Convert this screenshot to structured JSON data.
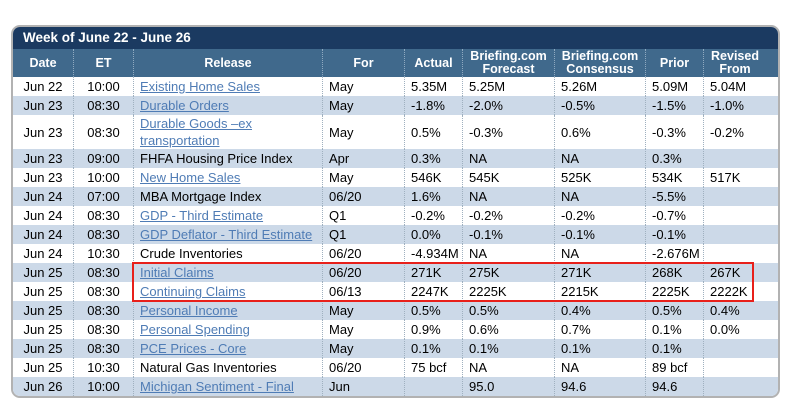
{
  "title": "Week of June 22 - June 26",
  "colors": {
    "titlebar_bg": "#1b3a61",
    "header_bg": "#40698c",
    "alt_row_bg": "#ccd9e8",
    "link": "#4f7cb5",
    "highlight_border": "#e8201a",
    "panel_border": "#b2b2b2"
  },
  "columns": [
    {
      "key": "date",
      "label": "Date"
    },
    {
      "key": "et",
      "label": "ET"
    },
    {
      "key": "release",
      "label": "Release"
    },
    {
      "key": "for",
      "label": "For"
    },
    {
      "key": "actual",
      "label": "Actual"
    },
    {
      "key": "forecast",
      "label": "Briefing.com Forecast"
    },
    {
      "key": "consensus",
      "label": "Briefing.com Consensus"
    },
    {
      "key": "prior",
      "label": "Prior"
    },
    {
      "key": "revised",
      "label": "Revised From"
    }
  ],
  "rows": [
    {
      "date": "Jun 22",
      "et": "10:00",
      "release": "Existing Home Sales",
      "link": true,
      "for": "May",
      "actual": "5.35M",
      "forecast": "5.25M",
      "consensus": "5.26M",
      "prior": "5.09M",
      "revised": "5.04M",
      "highlight": false
    },
    {
      "date": "Jun 23",
      "et": "08:30",
      "release": "Durable Orders",
      "link": true,
      "for": "May",
      "actual": "-1.8%",
      "forecast": "-2.0%",
      "consensus": "-0.5%",
      "prior": "-1.5%",
      "revised": "-1.0%",
      "highlight": false
    },
    {
      "date": "Jun 23",
      "et": "08:30",
      "release": "Durable Goods –ex transportation",
      "link": true,
      "for": "May",
      "actual": "0.5%",
      "forecast": "-0.3%",
      "consensus": "0.6%",
      "prior": "-0.3%",
      "revised": "-0.2%",
      "highlight": false
    },
    {
      "date": "Jun 23",
      "et": "09:00",
      "release": "FHFA Housing Price Index",
      "link": false,
      "for": "Apr",
      "actual": "0.3%",
      "forecast": "NA",
      "consensus": "NA",
      "prior": "0.3%",
      "revised": "",
      "highlight": false
    },
    {
      "date": "Jun 23",
      "et": "10:00",
      "release": "New Home Sales",
      "link": true,
      "for": "May",
      "actual": "546K",
      "forecast": "545K",
      "consensus": "525K",
      "prior": "534K",
      "revised": "517K",
      "highlight": false
    },
    {
      "date": "Jun 24",
      "et": "07:00",
      "release": "MBA Mortgage Index",
      "link": false,
      "for": "06/20",
      "actual": "1.6%",
      "forecast": "NA",
      "consensus": "NA",
      "prior": "-5.5%",
      "revised": "",
      "highlight": false
    },
    {
      "date": "Jun 24",
      "et": "08:30",
      "release": "GDP - Third Estimate",
      "link": true,
      "for": "Q1",
      "actual": "-0.2%",
      "forecast": "-0.2%",
      "consensus": "-0.2%",
      "prior": "-0.7%",
      "revised": "",
      "highlight": false
    },
    {
      "date": "Jun 24",
      "et": "08:30",
      "release": "GDP Deflator - Third Estimate",
      "link": true,
      "for": "Q1",
      "actual": "0.0%",
      "forecast": "-0.1%",
      "consensus": "-0.1%",
      "prior": "-0.1%",
      "revised": "",
      "highlight": false
    },
    {
      "date": "Jun 24",
      "et": "10:30",
      "release": "Crude Inventories",
      "link": false,
      "for": "06/20",
      "actual": "-4.934M",
      "forecast": "NA",
      "consensus": "NA",
      "prior": "-2.676M",
      "revised": "",
      "highlight": false
    },
    {
      "date": "Jun 25",
      "et": "08:30",
      "release": "Initial Claims",
      "link": true,
      "for": "06/20",
      "actual": "271K",
      "forecast": "275K",
      "consensus": "271K",
      "prior": "268K",
      "revised": "267K",
      "highlight": true
    },
    {
      "date": "Jun 25",
      "et": "08:30",
      "release": "Continuing Claims",
      "link": true,
      "for": "06/13",
      "actual": "2247K",
      "forecast": "2225K",
      "consensus": "2215K",
      "prior": "2225K",
      "revised": "2222K",
      "highlight": true
    },
    {
      "date": "Jun 25",
      "et": "08:30",
      "release": "Personal Income",
      "link": true,
      "for": "May",
      "actual": "0.5%",
      "forecast": "0.5%",
      "consensus": "0.4%",
      "prior": "0.5%",
      "revised": "0.4%",
      "highlight": false
    },
    {
      "date": "Jun 25",
      "et": "08:30",
      "release": "Personal Spending",
      "link": true,
      "for": "May",
      "actual": "0.9%",
      "forecast": "0.6%",
      "consensus": "0.7%",
      "prior": "0.1%",
      "revised": "0.0%",
      "highlight": false
    },
    {
      "date": "Jun 25",
      "et": "08:30",
      "release": "PCE Prices - Core",
      "link": true,
      "for": "May",
      "actual": "0.1%",
      "forecast": "0.1%",
      "consensus": "0.1%",
      "prior": "0.1%",
      "revised": "",
      "highlight": false
    },
    {
      "date": "Jun 25",
      "et": "10:30",
      "release": "Natural Gas Inventories",
      "link": false,
      "for": "06/20",
      "actual": "75 bcf",
      "forecast": "NA",
      "consensus": "NA",
      "prior": "89 bcf",
      "revised": "",
      "highlight": false
    },
    {
      "date": "Jun 26",
      "et": "10:00",
      "release": "Michigan Sentiment - Final",
      "link": true,
      "for": "Jun",
      "actual": "",
      "forecast": "95.0",
      "consensus": "94.6",
      "prior": "94.6",
      "revised": "",
      "highlight": false
    }
  ]
}
